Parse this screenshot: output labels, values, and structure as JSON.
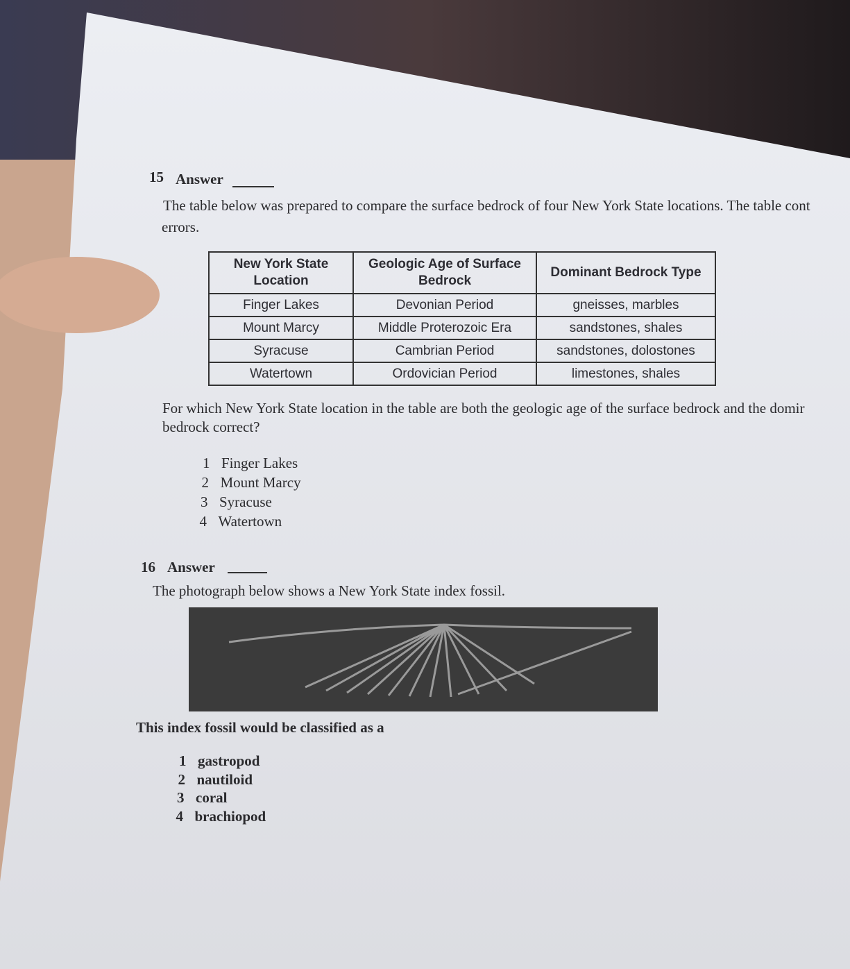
{
  "q15": {
    "number": "15",
    "answer_label": "Answer",
    "intro_lines": [
      "The table below was prepared to compare the surface bedrock of four New York State locations. The table cont",
      "errors."
    ],
    "table": {
      "header": [
        "New York State Location",
        "Geologic Age of Surface Bedrock",
        "Dominant Bedrock Type"
      ],
      "rows": [
        [
          "Finger Lakes",
          "Devonian Period",
          "gneisses, marbles"
        ],
        [
          "Mount Marcy",
          "Middle Proterozoic Era",
          "sandstones, shales"
        ],
        [
          "Syracuse",
          "Cambrian Period",
          "sandstones, dolostones"
        ],
        [
          "Watertown",
          "Ordovician Period",
          "limestones, shales"
        ]
      ]
    },
    "question_lines": [
      "For which New York State location in the table are both the geologic age of the surface bedrock and the domir",
      "bedrock correct?"
    ],
    "options": [
      {
        "number": "1",
        "text": "Finger Lakes"
      },
      {
        "number": "2",
        "text": "Mount Marcy"
      },
      {
        "number": "3",
        "text": "Syracuse"
      },
      {
        "number": "4",
        "text": "Watertown"
      }
    ]
  },
  "q16": {
    "number": "16",
    "answer_label": "Answer",
    "intro": "The photograph below shows a New York State index fossil.",
    "question": "This index fossil would be classified as a",
    "options": [
      {
        "number": "1",
        "text": "gastropod"
      },
      {
        "number": "2",
        "text": "nautiloid"
      },
      {
        "number": "3",
        "text": "coral"
      },
      {
        "number": "4",
        "text": "brachiopod"
      }
    ]
  }
}
